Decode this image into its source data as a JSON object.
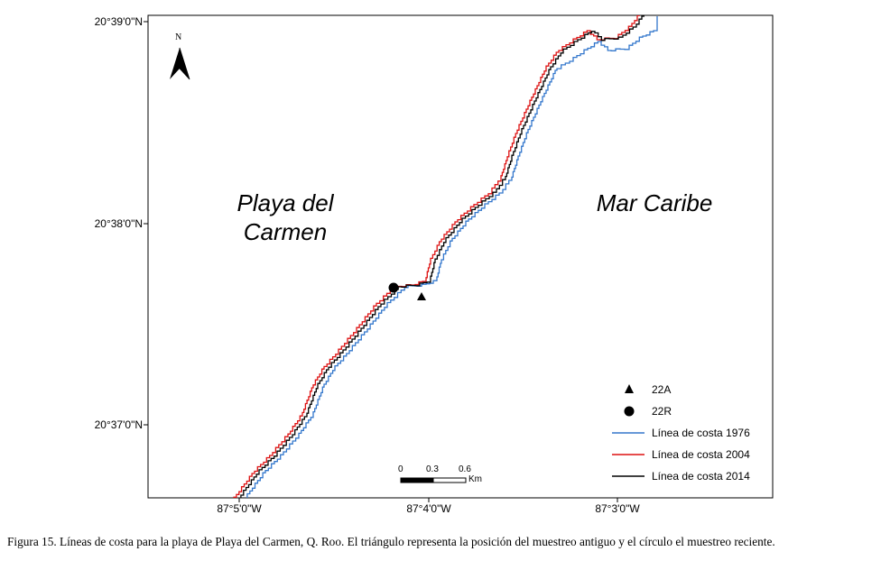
{
  "map": {
    "place_labels": {
      "land_line1": "Playa del",
      "land_line2": "Carmen",
      "sea": "Mar Caribe"
    },
    "north_arrow": {
      "label": "N"
    },
    "lat_ticks": [
      "20°39'0\"N",
      "20°38'0\"N",
      "20°37'0\"N"
    ],
    "lon_ticks": [
      "87°5'0\"W",
      "87°4'0\"W",
      "87°3'0\"W"
    ],
    "scale_bar": {
      "ticks": [
        "0",
        "0.3",
        "0.6"
      ],
      "unit": "Km"
    },
    "legend": {
      "points": [
        {
          "symbol": "triangle",
          "label": "22A"
        },
        {
          "symbol": "circle",
          "label": "22R"
        }
      ],
      "lines": [
        {
          "label": "Línea de costa 1976",
          "color": "#3377cc"
        },
        {
          "label": "Línea de costa 2004",
          "color": "#dd1111"
        },
        {
          "label": "Línea de costa 2014",
          "color": "#000000"
        }
      ]
    },
    "sample_points": {
      "triangle": "22A",
      "circle": "22R"
    }
  },
  "caption": "Figura 15. Líneas de costa para la playa de Playa del Carmen, Q. Roo. El triángulo representa la posición del muestreo antiguo y el círculo el muestreo reciente."
}
